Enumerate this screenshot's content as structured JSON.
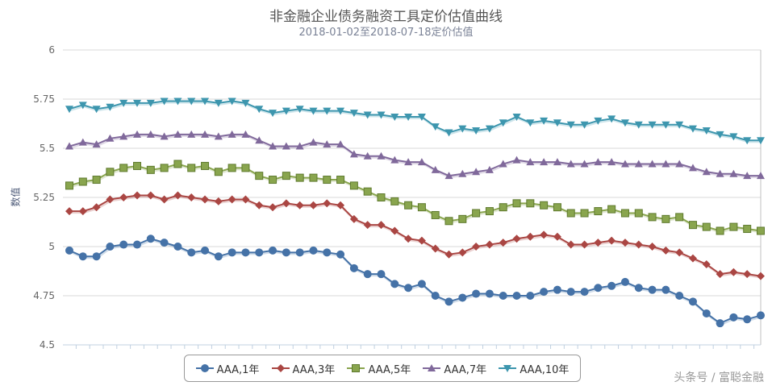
{
  "chart_data": {
    "type": "line",
    "title": "非金融企业债务融资工具定价估值曲线",
    "subtitle": "2018-01-02至2018-07-18定价估值",
    "ylabel": "数值",
    "xlabel": "",
    "ylim": [
      4.5,
      6
    ],
    "yticks": [
      "4.5",
      "4.75",
      "5",
      "5.25",
      "5.5",
      "5.75",
      "6"
    ],
    "grid": true,
    "legend_position": "bottom-center",
    "series": [
      {
        "name": "AAA,1年",
        "color": "#4572a7",
        "marker": "circle",
        "values": [
          4.98,
          4.95,
          4.95,
          5.0,
          5.01,
          5.01,
          5.04,
          5.02,
          5.0,
          4.97,
          4.98,
          4.95,
          4.97,
          4.97,
          4.97,
          4.98,
          4.97,
          4.97,
          4.98,
          4.97,
          4.96,
          4.89,
          4.86,
          4.86,
          4.81,
          4.79,
          4.81,
          4.75,
          4.72,
          4.74,
          4.76,
          4.76,
          4.75,
          4.75,
          4.75,
          4.77,
          4.78,
          4.77,
          4.77,
          4.79,
          4.8,
          4.82,
          4.79,
          4.78,
          4.78,
          4.75,
          4.72,
          4.66,
          4.61,
          4.64,
          4.63,
          4.65
        ]
      },
      {
        "name": "AAA,3年",
        "color": "#aa4643",
        "marker": "diamond",
        "values": [
          5.18,
          5.18,
          5.2,
          5.24,
          5.25,
          5.26,
          5.26,
          5.24,
          5.26,
          5.25,
          5.24,
          5.23,
          5.24,
          5.24,
          5.21,
          5.2,
          5.22,
          5.21,
          5.21,
          5.22,
          5.21,
          5.14,
          5.11,
          5.11,
          5.08,
          5.04,
          5.03,
          4.99,
          4.96,
          4.97,
          5.0,
          5.01,
          5.02,
          5.04,
          5.05,
          5.06,
          5.05,
          5.01,
          5.01,
          5.02,
          5.03,
          5.02,
          5.01,
          5.0,
          4.98,
          4.97,
          4.94,
          4.91,
          4.86,
          4.87,
          4.86,
          4.85
        ]
      },
      {
        "name": "AAA,5年",
        "color": "#89a54e",
        "marker": "square",
        "values": [
          5.31,
          5.33,
          5.34,
          5.38,
          5.4,
          5.41,
          5.39,
          5.4,
          5.42,
          5.4,
          5.41,
          5.38,
          5.4,
          5.4,
          5.36,
          5.34,
          5.36,
          5.35,
          5.35,
          5.34,
          5.34,
          5.31,
          5.28,
          5.25,
          5.23,
          5.21,
          5.2,
          5.16,
          5.13,
          5.14,
          5.17,
          5.18,
          5.2,
          5.22,
          5.22,
          5.21,
          5.2,
          5.17,
          5.17,
          5.18,
          5.19,
          5.17,
          5.17,
          5.15,
          5.14,
          5.15,
          5.11,
          5.1,
          5.08,
          5.1,
          5.09,
          5.08
        ]
      },
      {
        "name": "AAA,7年",
        "color": "#80699b",
        "marker": "triangle",
        "values": [
          5.51,
          5.53,
          5.52,
          5.55,
          5.56,
          5.57,
          5.57,
          5.56,
          5.57,
          5.57,
          5.57,
          5.56,
          5.57,
          5.57,
          5.54,
          5.51,
          5.51,
          5.51,
          5.53,
          5.52,
          5.52,
          5.47,
          5.46,
          5.46,
          5.44,
          5.43,
          5.43,
          5.39,
          5.36,
          5.37,
          5.38,
          5.39,
          5.42,
          5.44,
          5.43,
          5.43,
          5.43,
          5.42,
          5.42,
          5.43,
          5.43,
          5.42,
          5.42,
          5.42,
          5.42,
          5.42,
          5.4,
          5.38,
          5.37,
          5.37,
          5.36,
          5.36
        ]
      },
      {
        "name": "AAA,10年",
        "color": "#3d96ae",
        "marker": "triangle-down",
        "values": [
          5.7,
          5.72,
          5.7,
          5.71,
          5.73,
          5.73,
          5.73,
          5.74,
          5.74,
          5.74,
          5.74,
          5.73,
          5.74,
          5.73,
          5.7,
          5.68,
          5.69,
          5.7,
          5.69,
          5.69,
          5.69,
          5.68,
          5.67,
          5.67,
          5.66,
          5.66,
          5.66,
          5.61,
          5.58,
          5.6,
          5.59,
          5.6,
          5.63,
          5.66,
          5.63,
          5.64,
          5.63,
          5.62,
          5.62,
          5.64,
          5.65,
          5.63,
          5.62,
          5.62,
          5.62,
          5.62,
          5.6,
          5.59,
          5.57,
          5.56,
          5.54,
          5.54
        ]
      }
    ]
  },
  "watermark": "头条号 / 富聪金融"
}
